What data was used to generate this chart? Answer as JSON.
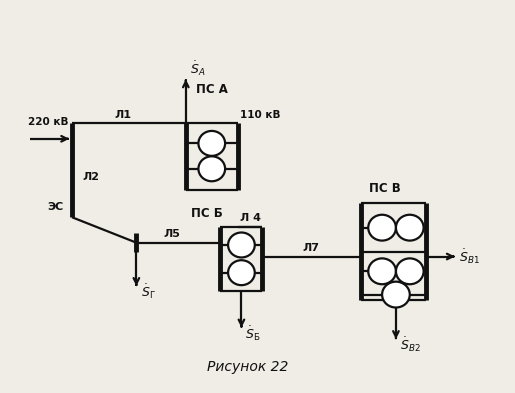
{
  "title": "Рисунок 22",
  "bg_color": "#f0ede6",
  "line_color": "#111111",
  "text_color": "#111111",
  "fig_width": 5.15,
  "fig_height": 3.93,
  "dpi": 100,
  "xlim": [
    0,
    10
  ],
  "ylim": [
    0,
    8
  ]
}
